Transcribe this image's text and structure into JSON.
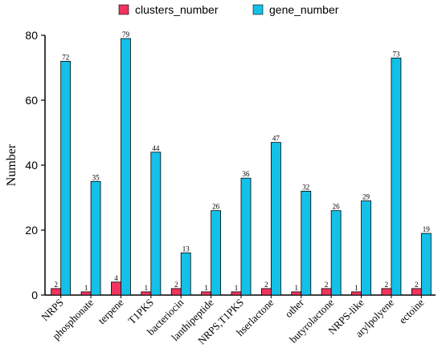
{
  "chart_data": {
    "type": "bar",
    "title": "",
    "xlabel": "",
    "ylabel": "Number",
    "ylim": [
      0,
      80
    ],
    "yticks": [
      0,
      20,
      40,
      60,
      80
    ],
    "grid": false,
    "legend_position": "top-center",
    "categories": [
      "NRPS",
      "phosphonate",
      "terpene",
      "T1PKS",
      "bacteriocin",
      "lanthipeptide",
      "NRPS,T1PKS",
      "hserlactone",
      "other",
      "butyrolactone",
      "NRPS-like",
      "arylpolyene",
      "ectoine"
    ],
    "series": [
      {
        "name": "clusters_number",
        "color": "#f0345f",
        "values": [
          2,
          1,
          4,
          1,
          2,
          1,
          1,
          2,
          1,
          2,
          1,
          2,
          2
        ]
      },
      {
        "name": "gene_number",
        "color": "#13c1e8",
        "values": [
          72,
          35,
          79,
          44,
          13,
          26,
          36,
          47,
          32,
          26,
          29,
          73,
          19
        ]
      }
    ]
  }
}
